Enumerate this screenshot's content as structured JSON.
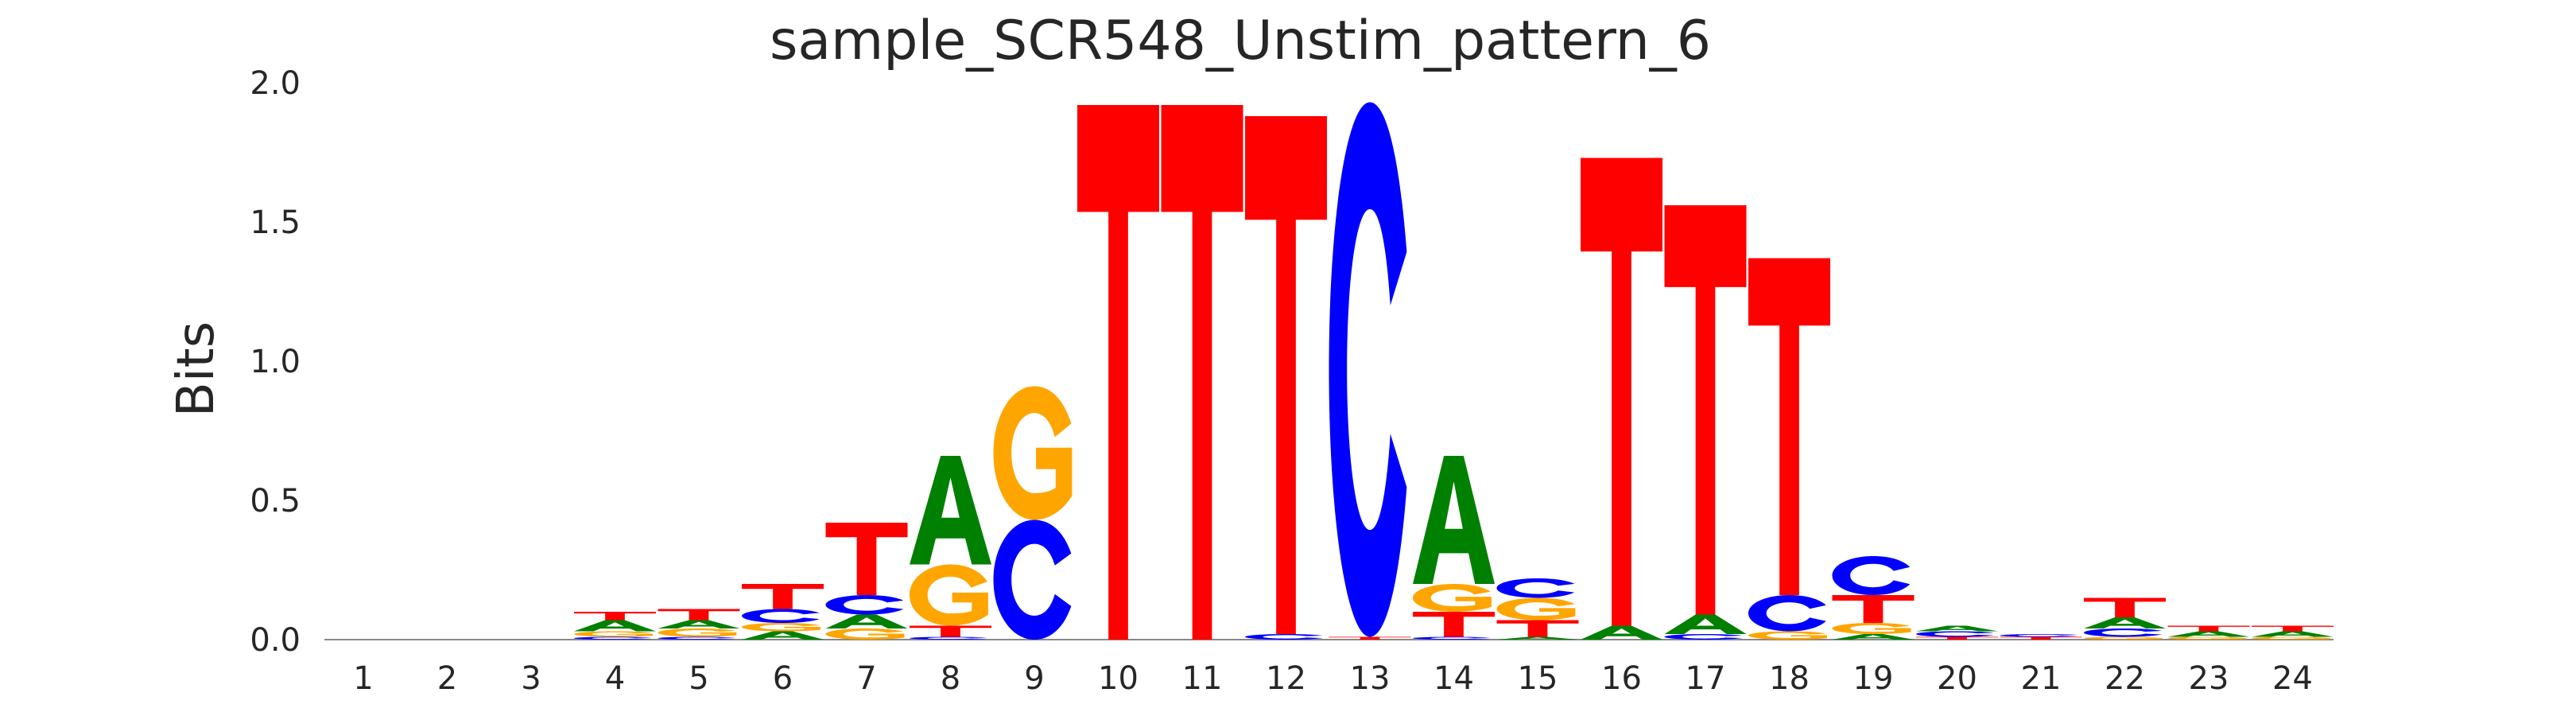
{
  "chart_data": {
    "type": "sequence_logo",
    "title": "sample_SCR548_Unstim_pattern_6",
    "xlabel": "",
    "ylabel": "Bits",
    "ylim": [
      0,
      2.0
    ],
    "yticks": [
      "0.0",
      "0.5",
      "1.0",
      "1.5",
      "2.0"
    ],
    "grid": false,
    "colors": {
      "A": "#008000",
      "C": "#0000ff",
      "G": "#ffa500",
      "T": "#ff0000"
    },
    "positions": [
      {
        "pos": "1",
        "stack": []
      },
      {
        "pos": "2",
        "stack": []
      },
      {
        "pos": "3",
        "stack": []
      },
      {
        "pos": "4",
        "stack": [
          [
            "C",
            0.01
          ],
          [
            "G",
            0.02
          ],
          [
            "A",
            0.04
          ],
          [
            "T",
            0.03
          ]
        ]
      },
      {
        "pos": "5",
        "stack": [
          [
            "C",
            0.01
          ],
          [
            "G",
            0.03
          ],
          [
            "A",
            0.03
          ],
          [
            "T",
            0.04
          ]
        ]
      },
      {
        "pos": "6",
        "stack": [
          [
            "A",
            0.03
          ],
          [
            "G",
            0.03
          ],
          [
            "C",
            0.05
          ],
          [
            "T",
            0.09
          ]
        ]
      },
      {
        "pos": "7",
        "stack": [
          [
            "G",
            0.04
          ],
          [
            "A",
            0.05
          ],
          [
            "C",
            0.07
          ],
          [
            "T",
            0.26
          ]
        ]
      },
      {
        "pos": "8",
        "stack": [
          [
            "C",
            0.01
          ],
          [
            "T",
            0.04
          ],
          [
            "G",
            0.22
          ],
          [
            "A",
            0.39
          ]
        ]
      },
      {
        "pos": "9",
        "stack": [
          [
            "C",
            0.43
          ],
          [
            "G",
            0.48
          ]
        ]
      },
      {
        "pos": "10",
        "stack": [
          [
            "T",
            1.92
          ]
        ]
      },
      {
        "pos": "11",
        "stack": [
          [
            "T",
            1.92
          ]
        ]
      },
      {
        "pos": "12",
        "stack": [
          [
            "C",
            0.02
          ],
          [
            "T",
            1.86
          ]
        ]
      },
      {
        "pos": "13",
        "stack": [
          [
            "T",
            0.01
          ],
          [
            "C",
            1.92
          ]
        ]
      },
      {
        "pos": "14",
        "stack": [
          [
            "C",
            0.01
          ],
          [
            "T",
            0.09
          ],
          [
            "G",
            0.1
          ],
          [
            "A",
            0.46
          ]
        ]
      },
      {
        "pos": "15",
        "stack": [
          [
            "A",
            0.01
          ],
          [
            "T",
            0.06
          ],
          [
            "G",
            0.08
          ],
          [
            "C",
            0.07
          ]
        ]
      },
      {
        "pos": "16",
        "stack": [
          [
            "A",
            0.05
          ],
          [
            "T",
            1.68
          ]
        ]
      },
      {
        "pos": "17",
        "stack": [
          [
            "C",
            0.02
          ],
          [
            "A",
            0.07
          ],
          [
            "T",
            1.47
          ]
        ]
      },
      {
        "pos": "18",
        "stack": [
          [
            "G",
            0.03
          ],
          [
            "C",
            0.13
          ],
          [
            "T",
            1.21
          ]
        ]
      },
      {
        "pos": "19",
        "stack": [
          [
            "A",
            0.02
          ],
          [
            "G",
            0.04
          ],
          [
            "T",
            0.1
          ],
          [
            "C",
            0.14
          ]
        ]
      },
      {
        "pos": "20",
        "stack": [
          [
            "T",
            0.01
          ],
          [
            "C",
            0.02
          ],
          [
            "A",
            0.02
          ]
        ]
      },
      {
        "pos": "21",
        "stack": [
          [
            "T",
            0.01
          ],
          [
            "C",
            0.01
          ]
        ]
      },
      {
        "pos": "22",
        "stack": [
          [
            "G",
            0.01
          ],
          [
            "C",
            0.03
          ],
          [
            "A",
            0.04
          ],
          [
            "T",
            0.07
          ]
        ]
      },
      {
        "pos": "23",
        "stack": [
          [
            "G",
            0.01
          ],
          [
            "A",
            0.02
          ],
          [
            "T",
            0.02
          ]
        ]
      },
      {
        "pos": "24",
        "stack": [
          [
            "G",
            0.01
          ],
          [
            "A",
            0.02
          ],
          [
            "T",
            0.02
          ]
        ]
      }
    ]
  }
}
